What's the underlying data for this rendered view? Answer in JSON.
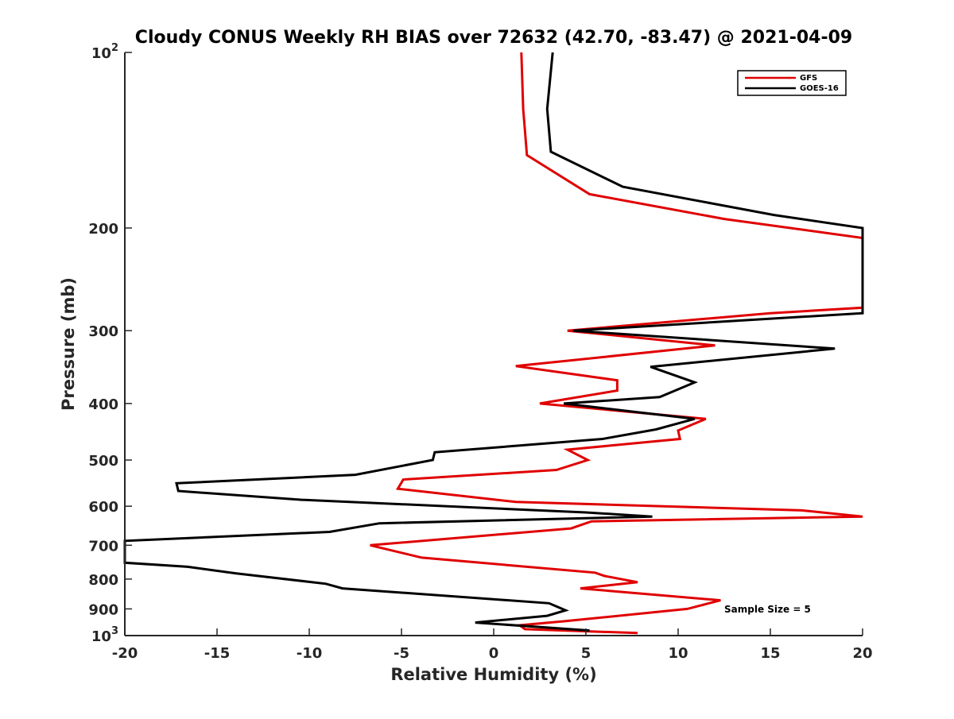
{
  "chart_data": {
    "type": "line",
    "title": "Cloudy CONUS Weekly RH BIAS over 72632 (42.70, -83.47) @ 2021-04-09",
    "xlabel": "Relative Humidity (%)",
    "ylabel": "Pressure (mb)",
    "xlim": [
      -20,
      20
    ],
    "ylim": [
      100,
      1000
    ],
    "y_scale": "log",
    "y_reversed": true,
    "grid": false,
    "legend_position": "top-right",
    "x_ticks": [
      "-20",
      "-15",
      "-10",
      "-5",
      "0",
      "5",
      "10",
      "15",
      "20"
    ],
    "y_ticks": [
      {
        "value": 100,
        "base": "10",
        "exp": "2"
      },
      {
        "value": 200,
        "label": "200"
      },
      {
        "value": 300,
        "label": "300"
      },
      {
        "value": 400,
        "label": "400"
      },
      {
        "value": 500,
        "label": "500"
      },
      {
        "value": 600,
        "label": "600"
      },
      {
        "value": 700,
        "label": "700"
      },
      {
        "value": 800,
        "label": "800"
      },
      {
        "value": 900,
        "label": "900"
      },
      {
        "value": 1000,
        "base": "10",
        "exp": "3"
      }
    ],
    "annotation": "Sample Size = 5",
    "series": [
      {
        "name": "GFS",
        "color": "#e00000",
        "points": [
          [
            1.5,
            100
          ],
          [
            1.6,
            125
          ],
          [
            1.8,
            150
          ],
          [
            5.2,
            175
          ],
          [
            12.5,
            193
          ],
          [
            20,
            208
          ],
          [
            20,
            274
          ],
          [
            15.0,
            280
          ],
          [
            4.0,
            300
          ],
          [
            12.0,
            318
          ],
          [
            1.2,
            345
          ],
          [
            6.7,
            365
          ],
          [
            6.7,
            380
          ],
          [
            2.5,
            400
          ],
          [
            11.5,
            425
          ],
          [
            10.0,
            445
          ],
          [
            10.1,
            460
          ],
          [
            4.0,
            480
          ],
          [
            5.1,
            500
          ],
          [
            3.4,
            520
          ],
          [
            -4.9,
            540
          ],
          [
            -5.2,
            560
          ],
          [
            1.2,
            590
          ],
          [
            16.7,
            610
          ],
          [
            20,
            625
          ],
          [
            5.3,
            637
          ],
          [
            4.2,
            655
          ],
          [
            -6.7,
            700
          ],
          [
            -3.9,
            735
          ],
          [
            5.5,
            780
          ],
          [
            6.0,
            790
          ],
          [
            7.8,
            810
          ],
          [
            4.7,
            830
          ],
          [
            12.3,
            870
          ],
          [
            10.5,
            900
          ],
          [
            3.8,
            945
          ],
          [
            1.4,
            960
          ],
          [
            1.7,
            975
          ],
          [
            7.8,
            990
          ]
        ]
      },
      {
        "name": "GOES-16",
        "color": "#000000",
        "points": [
          [
            3.2,
            100
          ],
          [
            2.9,
            125
          ],
          [
            3.1,
            148
          ],
          [
            7.0,
            170
          ],
          [
            15.2,
            190
          ],
          [
            20,
            200
          ],
          [
            20,
            280
          ],
          [
            4.3,
            300
          ],
          [
            18.5,
            322
          ],
          [
            8.5,
            346
          ],
          [
            10.9,
            368
          ],
          [
            9.0,
            390
          ],
          [
            3.8,
            400
          ],
          [
            10.9,
            425
          ],
          [
            8.8,
            443
          ],
          [
            5.9,
            460
          ],
          [
            -3.2,
            485
          ],
          [
            -3.3,
            500
          ],
          [
            -7.5,
            530
          ],
          [
            -17.2,
            548
          ],
          [
            -17.1,
            565
          ],
          [
            -10.4,
            585
          ],
          [
            5.0,
            615
          ],
          [
            8.6,
            625
          ],
          [
            -6.2,
            642
          ],
          [
            -8.9,
            664
          ],
          [
            -20,
            688
          ],
          [
            -20,
            750
          ],
          [
            -16.6,
            762
          ],
          [
            -14.0,
            782
          ],
          [
            -9.1,
            815
          ],
          [
            -8.2,
            830
          ],
          [
            3.0,
            880
          ],
          [
            3.9,
            905
          ],
          [
            2.9,
            925
          ],
          [
            -1.0,
            950
          ],
          [
            5.2,
            980
          ]
        ]
      }
    ]
  }
}
